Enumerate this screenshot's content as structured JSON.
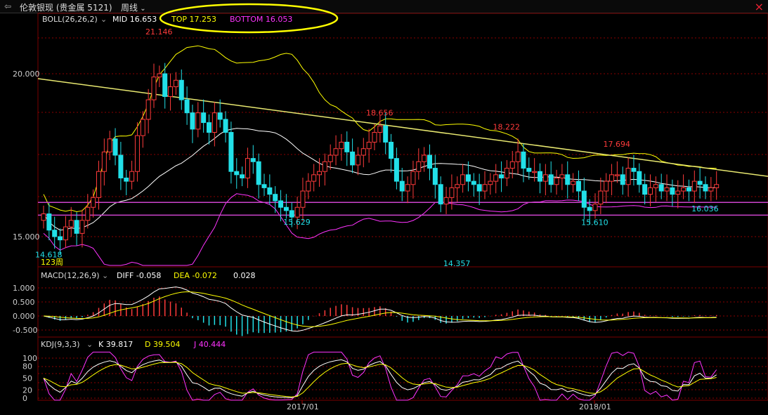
{
  "header": {
    "title": "伦敦银现 (贵金属 5121)",
    "period": "周线",
    "close_label": "×"
  },
  "colors": {
    "up": "#ff3b3b",
    "down": "#22e0e8",
    "mid": "#ffffff",
    "band_upper": "#ffff00",
    "band_lower": "#ff33ff",
    "trendline": "#e8e870",
    "grid": "#8b0000",
    "support": "#cc44cc",
    "macd_diff": "#ffffff",
    "macd_dea": "#ffff00",
    "kdj_k": "#ffffff",
    "kdj_d": "#ffff00",
    "kdj_j": "#ff33ff"
  },
  "boll_legend": {
    "name": "BOLL(26,26,2)",
    "mid": "MID 16.653",
    "top": "TOP 17.253",
    "bottom": "BOTTOM 16.053"
  },
  "macd_legend": {
    "name": "MACD(12,26,9)",
    "diff": "DIFF -0.058",
    "dea": "DEA -0.072",
    "macd": "0.028"
  },
  "kdj_legend": {
    "name": "KDJ(9,3,3)",
    "k": "K 39.817",
    "d": "D 39.504",
    "j": "J 40.444"
  },
  "chart_data": {
    "type": "candlestick",
    "indicator": "BOLL(26,26,2)",
    "price_axis": {
      "ticks": [
        15.0,
        20.0
      ],
      "labels": [
        "15.000",
        "20.000"
      ]
    },
    "x_ticks": [
      "2017/01",
      "2018/01"
    ],
    "bars_label": "123周",
    "annotations": [
      {
        "text": "21.146",
        "value": 21.146,
        "kind": "high"
      },
      {
        "text": "14.618",
        "value": 14.618,
        "kind": "low"
      },
      {
        "text": "15.629",
        "value": 15.629,
        "kind": "low"
      },
      {
        "text": "18.656",
        "value": 18.656,
        "kind": "high"
      },
      {
        "text": "14.357",
        "value": 14.357,
        "kind": "low"
      },
      {
        "text": "18.222",
        "value": 18.222,
        "kind": "high"
      },
      {
        "text": "15.610",
        "value": 15.61,
        "kind": "low"
      },
      {
        "text": "17.694",
        "value": 17.694,
        "kind": "high"
      },
      {
        "text": "16.036",
        "value": 16.036,
        "kind": "low"
      }
    ],
    "support_levels": [
      16.05,
      15.66
    ],
    "macd": {
      "ticks": [
        1.0,
        0.5,
        0.0,
        -0.5
      ],
      "labels": [
        "1.000",
        "0.500",
        "0.000",
        "-0.500"
      ]
    },
    "kdj": {
      "ticks": [
        100,
        80,
        50,
        20,
        0
      ],
      "labels": [
        "100",
        "80",
        "50",
        "20",
        "0"
      ]
    },
    "closes": [
      15.7,
      15.2,
      15.0,
      14.9,
      15.3,
      15.5,
      15.1,
      15.5,
      15.9,
      16.2,
      17.0,
      17.6,
      18.0,
      17.5,
      16.8,
      16.7,
      17.0,
      18.1,
      18.6,
      19.2,
      19.9,
      20.0,
      19.3,
      19.6,
      19.8,
      19.2,
      18.8,
      18.3,
      18.8,
      18.5,
      18.2,
      18.8,
      18.6,
      18.2,
      17.0,
      16.9,
      16.8,
      17.4,
      17.3,
      16.6,
      16.5,
      16.3,
      16.1,
      15.9,
      15.8,
      15.6,
      15.9,
      16.4,
      16.7,
      16.9,
      17.0,
      17.3,
      17.5,
      17.7,
      17.9,
      17.6,
      17.2,
      17.5,
      17.7,
      17.9,
      18.2,
      18.4,
      17.9,
      17.4,
      16.7,
      16.4,
      16.6,
      17.0,
      17.3,
      17.5,
      17.1,
      16.6,
      16.0,
      16.2,
      16.5,
      16.6,
      16.9,
      16.7,
      16.6,
      16.4,
      16.6,
      16.7,
      16.9,
      16.8,
      17.1,
      17.3,
      17.6,
      17.1,
      17.0,
      17.0,
      16.7,
      16.9,
      16.6,
      16.8,
      16.9,
      16.6,
      16.7,
      16.4,
      15.9,
      15.8,
      16.0,
      16.4,
      16.7,
      16.9,
      16.9,
      16.6,
      17.1,
      17.0,
      16.6,
      16.3,
      16.5,
      16.6,
      16.4,
      16.5,
      16.3,
      16.4,
      16.5,
      16.4,
      16.7,
      16.6,
      16.4,
      16.5,
      16.6
    ]
  }
}
